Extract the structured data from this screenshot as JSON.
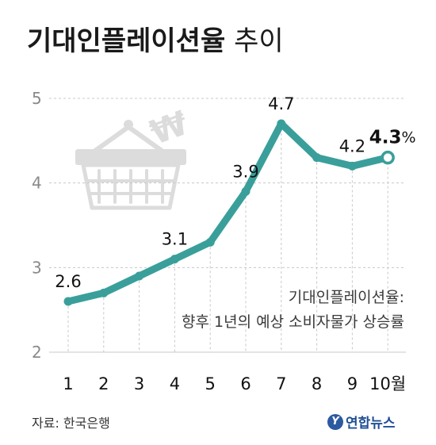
{
  "title": {
    "main": "기대인플레이션율",
    "suffix": "추이"
  },
  "note": {
    "line1": "기대인플레이션율:",
    "line2": "향후 1년의 예상 소비자물가 상승률"
  },
  "source": "자료: 한국은행",
  "logo": {
    "mark": "Y",
    "text": "연합뉴스"
  },
  "colors": {
    "line": "#3a9f9a",
    "grid": "#c8c8c8",
    "axis_text": "#8a8a8a",
    "label": "#111111",
    "icon": "#dcdcdc"
  },
  "icons": {
    "background": "shopping-basket-icon",
    "currency": "won-sign-icon"
  },
  "chart_data": {
    "type": "line",
    "title": "기대인플레이션율 추이",
    "x": [
      "1",
      "2",
      "3",
      "4",
      "5",
      "6",
      "7",
      "8",
      "9",
      "10월"
    ],
    "series": [
      {
        "values": [
          2.6,
          2.7,
          2.9,
          3.1,
          3.3,
          3.9,
          4.7,
          4.3,
          4.2,
          4.3
        ]
      }
    ],
    "point_labels": [
      {
        "index": 0,
        "text": "2.6"
      },
      {
        "index": 3,
        "text": "3.1"
      },
      {
        "index": 5,
        "text": "3.9"
      },
      {
        "index": 6,
        "text": "4.7"
      },
      {
        "index": 8,
        "text": "4.2"
      },
      {
        "index": 9,
        "text": "4.3",
        "suffix": "%"
      }
    ],
    "yticks": [
      "2",
      "3",
      "4",
      "5"
    ],
    "ylim": [
      2,
      5
    ],
    "grid": "horizontal and vertical dashed",
    "last_point": "hollow marker"
  }
}
